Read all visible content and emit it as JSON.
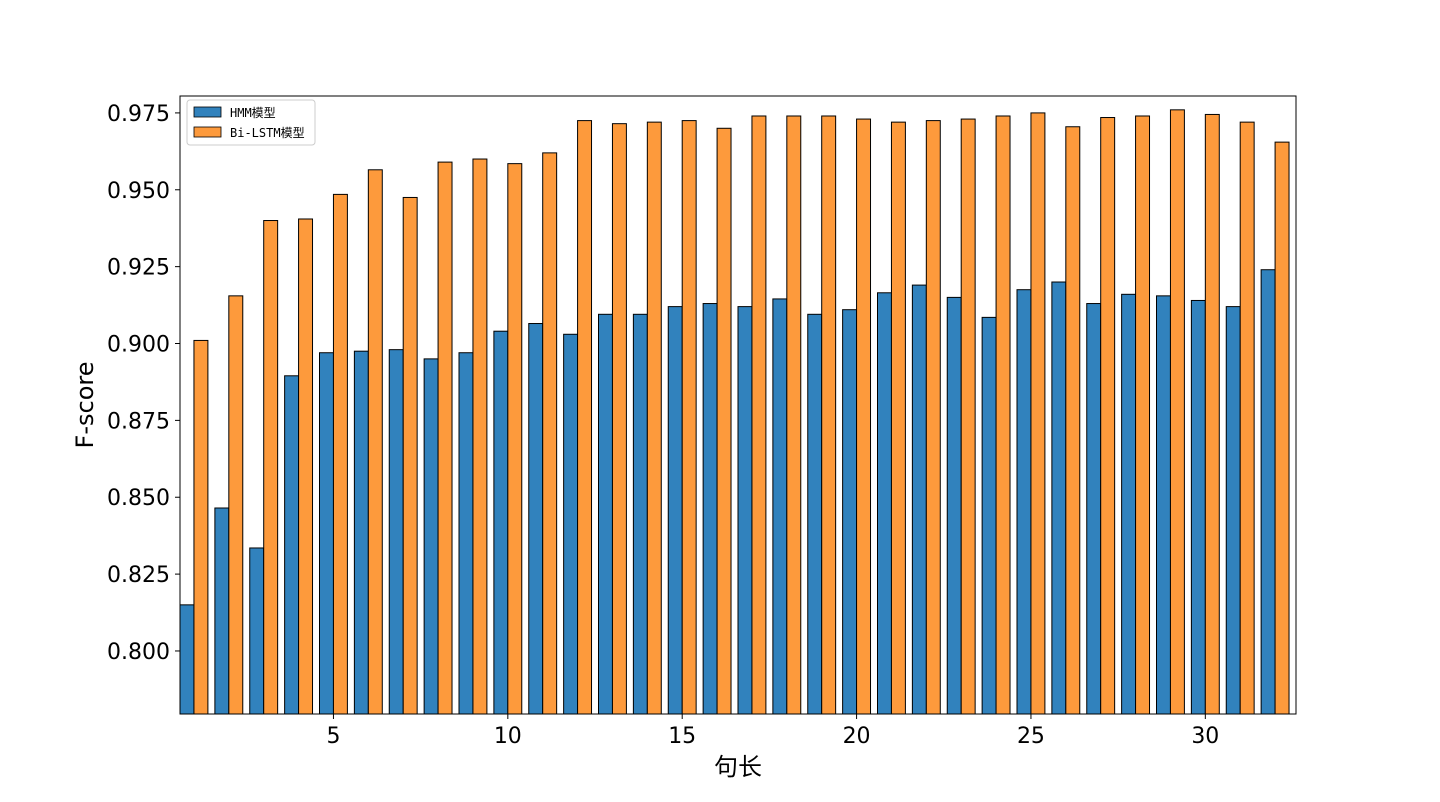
{
  "chart_data": {
    "type": "bar",
    "title": "",
    "xlabel": "句长",
    "ylabel": "F-score",
    "x": [
      1,
      2,
      3,
      4,
      5,
      6,
      7,
      8,
      9,
      10,
      11,
      12,
      13,
      14,
      15,
      16,
      17,
      18,
      19,
      20,
      21,
      22,
      23,
      24,
      25,
      26,
      27,
      28,
      29,
      30,
      31,
      32
    ],
    "xticks": [
      5,
      10,
      15,
      20,
      25,
      30
    ],
    "xtick_labels": [
      "5",
      "10",
      "15",
      "20",
      "25",
      "30"
    ],
    "xlim": [
      0.6,
      32.6
    ],
    "ylim": [
      0.7795,
      0.9805
    ],
    "yticks": [
      0.8,
      0.825,
      0.85,
      0.875,
      0.9,
      0.925,
      0.95,
      0.975
    ],
    "ytick_labels": [
      "0.800",
      "0.825",
      "0.850",
      "0.875",
      "0.900",
      "0.925",
      "0.950",
      "0.975"
    ],
    "grid": false,
    "legend_position": "top-left",
    "series": [
      {
        "name": "HMM模型",
        "color": "#3182bd",
        "values": [
          0.815,
          0.8465,
          0.8335,
          0.8895,
          0.897,
          0.8975,
          0.898,
          0.895,
          0.897,
          0.904,
          0.9065,
          0.903,
          0.9095,
          0.9095,
          0.912,
          0.913,
          0.912,
          0.9145,
          0.9095,
          0.911,
          0.9165,
          0.919,
          0.915,
          0.9085,
          0.9175,
          0.92,
          0.913,
          0.916,
          0.9155,
          0.914,
          0.912,
          0.924
        ]
      },
      {
        "name": "Bi-LSTM模型",
        "color": "#fd9a3c",
        "values": [
          0.901,
          0.9155,
          0.94,
          0.9405,
          0.9485,
          0.9565,
          0.9475,
          0.959,
          0.96,
          0.9585,
          0.962,
          0.9725,
          0.9715,
          0.972,
          0.9725,
          0.97,
          0.974,
          0.974,
          0.974,
          0.973,
          0.972,
          0.9725,
          0.973,
          0.974,
          0.975,
          0.9705,
          0.9735,
          0.974,
          0.976,
          0.9745,
          0.972,
          0.9655
        ]
      }
    ]
  }
}
